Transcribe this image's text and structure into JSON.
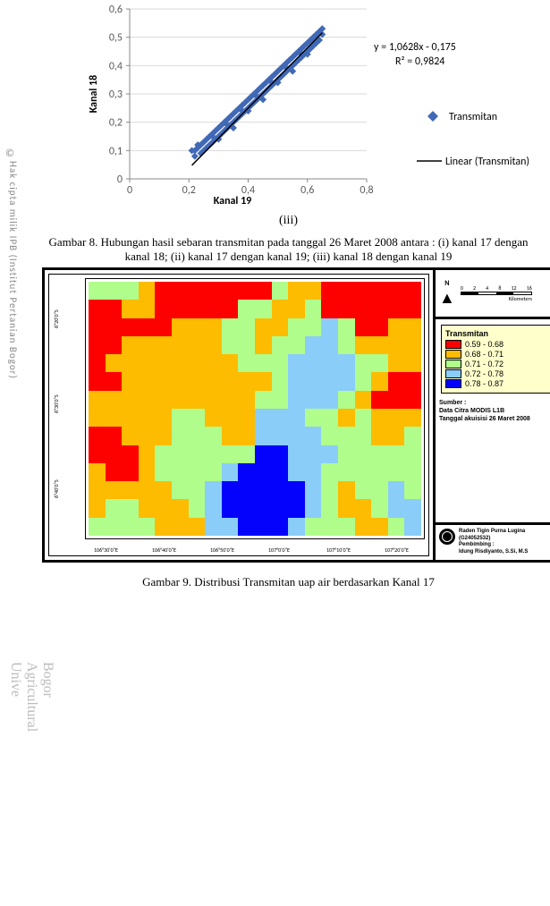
{
  "watermark": {
    "copyright_symbol": "©",
    "text_top": "Hak cipta milik IPB (Institut Pertanian Bogor)",
    "text_bottom": "Bogor Agricultural Unive"
  },
  "scatter_chart": {
    "type": "scatter",
    "x_axis": {
      "title": "Kanal 19",
      "min": 0,
      "max": 0.8,
      "step": 0.2,
      "ticks": [
        "0",
        "0,2",
        "0,4",
        "0,6",
        "0,8"
      ]
    },
    "y_axis": {
      "title": "Kanal 18",
      "min": 0,
      "max": 0.6,
      "step": 0.1,
      "ticks": [
        "0",
        "0,1",
        "0,2",
        "0,3",
        "0,4",
        "0,5",
        "0,6"
      ]
    },
    "equation": "y = 1,0628x - 0,175",
    "r_squared": "R² = 0,9824",
    "series_name": "Transmitan",
    "trend_name": "Linear (Transmitan)",
    "marker_color": "#4169b6",
    "marker_shape": "diamond",
    "trend_color": "#000000",
    "grid_color": "#d9d9d9",
    "axis_color": "#888888",
    "font": "Calibri",
    "label_fontsize": 12,
    "title_fontsize": 12,
    "data_cluster": {
      "comment": "dense linear cluster estimated from figure",
      "points": [
        [
          0.21,
          0.1
        ],
        [
          0.22,
          0.1
        ],
        [
          0.23,
          0.11
        ],
        [
          0.24,
          0.09
        ],
        [
          0.24,
          0.12
        ],
        [
          0.25,
          0.1
        ],
        [
          0.25,
          0.13
        ],
        [
          0.26,
          0.11
        ],
        [
          0.26,
          0.14
        ],
        [
          0.27,
          0.12
        ],
        [
          0.27,
          0.15
        ],
        [
          0.28,
          0.13
        ],
        [
          0.28,
          0.16
        ],
        [
          0.29,
          0.14
        ],
        [
          0.29,
          0.17
        ],
        [
          0.3,
          0.15
        ],
        [
          0.3,
          0.18
        ],
        [
          0.31,
          0.16
        ],
        [
          0.31,
          0.19
        ],
        [
          0.32,
          0.17
        ],
        [
          0.32,
          0.2
        ],
        [
          0.33,
          0.18
        ],
        [
          0.33,
          0.21
        ],
        [
          0.34,
          0.19
        ],
        [
          0.34,
          0.22
        ],
        [
          0.35,
          0.2
        ],
        [
          0.35,
          0.23
        ],
        [
          0.36,
          0.21
        ],
        [
          0.36,
          0.24
        ],
        [
          0.37,
          0.22
        ],
        [
          0.37,
          0.25
        ],
        [
          0.38,
          0.23
        ],
        [
          0.38,
          0.26
        ],
        [
          0.39,
          0.24
        ],
        [
          0.39,
          0.27
        ],
        [
          0.4,
          0.25
        ],
        [
          0.4,
          0.28
        ],
        [
          0.41,
          0.26
        ],
        [
          0.41,
          0.29
        ],
        [
          0.42,
          0.27
        ],
        [
          0.42,
          0.3
        ],
        [
          0.43,
          0.28
        ],
        [
          0.43,
          0.31
        ],
        [
          0.44,
          0.29
        ],
        [
          0.44,
          0.32
        ],
        [
          0.45,
          0.3
        ],
        [
          0.45,
          0.33
        ],
        [
          0.46,
          0.31
        ],
        [
          0.46,
          0.34
        ],
        [
          0.47,
          0.32
        ],
        [
          0.47,
          0.35
        ],
        [
          0.48,
          0.33
        ],
        [
          0.48,
          0.36
        ],
        [
          0.49,
          0.34
        ],
        [
          0.49,
          0.37
        ],
        [
          0.5,
          0.35
        ],
        [
          0.5,
          0.38
        ],
        [
          0.51,
          0.36
        ],
        [
          0.51,
          0.39
        ],
        [
          0.52,
          0.37
        ],
        [
          0.52,
          0.4
        ],
        [
          0.53,
          0.38
        ],
        [
          0.53,
          0.41
        ],
        [
          0.54,
          0.39
        ],
        [
          0.54,
          0.42
        ],
        [
          0.55,
          0.4
        ],
        [
          0.55,
          0.43
        ],
        [
          0.56,
          0.41
        ],
        [
          0.56,
          0.44
        ],
        [
          0.57,
          0.42
        ],
        [
          0.57,
          0.45
        ],
        [
          0.58,
          0.43
        ],
        [
          0.58,
          0.46
        ],
        [
          0.59,
          0.44
        ],
        [
          0.59,
          0.47
        ],
        [
          0.6,
          0.45
        ],
        [
          0.6,
          0.48
        ],
        [
          0.61,
          0.46
        ],
        [
          0.61,
          0.49
        ],
        [
          0.62,
          0.47
        ],
        [
          0.62,
          0.5
        ],
        [
          0.63,
          0.48
        ],
        [
          0.63,
          0.51
        ],
        [
          0.64,
          0.49
        ],
        [
          0.64,
          0.52
        ],
        [
          0.65,
          0.51
        ],
        [
          0.65,
          0.53
        ],
        [
          0.22,
          0.08
        ],
        [
          0.3,
          0.14
        ],
        [
          0.35,
          0.18
        ],
        [
          0.4,
          0.24
        ],
        [
          0.45,
          0.28
        ],
        [
          0.5,
          0.34
        ],
        [
          0.55,
          0.38
        ],
        [
          0.6,
          0.44
        ],
        [
          0.23,
          0.12
        ],
        [
          0.28,
          0.15
        ],
        [
          0.33,
          0.19
        ],
        [
          0.38,
          0.24
        ],
        [
          0.43,
          0.29
        ],
        [
          0.48,
          0.34
        ],
        [
          0.53,
          0.39
        ],
        [
          0.58,
          0.44
        ]
      ]
    },
    "trendline": {
      "x1": 0.21,
      "y1": 0.048,
      "x2": 0.65,
      "y2": 0.516
    }
  },
  "roman_numeral": "(iii)",
  "caption8": "Gambar 8. Hubungan hasil sebaran transmitan pada tanggal 26 Maret 2008 antara : (i) kanal 17 dengan kanal 18; (ii) kanal 17 dengan kanal 19; (iii) kanal 18 dengan kanal 19",
  "map": {
    "type": "heatmap",
    "north_label": "N",
    "scale_values": [
      "0",
      "2",
      "4",
      "8",
      "12",
      "16"
    ],
    "scale_unit": "Kilometers",
    "legend_title": "Transmitan",
    "legend": [
      {
        "range": "0.59 - 0.68",
        "color": "#fd0000"
      },
      {
        "range": "0.68 - 0.71",
        "color": "#fdbc00"
      },
      {
        "range": "0.71 - 0.72",
        "color": "#b0fd8b"
      },
      {
        "range": "0.72 - 0.78",
        "color": "#8acdf8"
      },
      {
        "range": "0.78 - 0.87",
        "color": "#0402fd"
      }
    ],
    "source": {
      "line1": "Sumber :",
      "line2": "Data Citra MODIS L1B",
      "line3": "Tanggal akuisisi 26 Maret 2008"
    },
    "author": {
      "line1": "Raden Tigin Purna Lugina",
      "line2": "(G24052532)",
      "line3": "Pembimbing :",
      "line4": "Idung Risdiyanto, S.Si, M.S"
    },
    "coords": {
      "x_ticks": [
        "106°30'0\"E",
        "106°40'0\"E",
        "106°50'0\"E",
        "107°0'0\"E",
        "107°10'0\"E",
        "107°20'0\"E"
      ],
      "y_ticks": [
        "6°20'0\"S",
        "6°30'0\"S",
        "6°40'0\"S"
      ]
    },
    "grid_colors_14x20": [
      [
        3,
        3,
        3,
        2,
        1,
        1,
        1,
        1,
        1,
        1,
        1,
        3,
        2,
        2,
        1,
        1,
        1,
        1,
        1,
        1
      ],
      [
        1,
        1,
        2,
        2,
        1,
        1,
        1,
        1,
        1,
        3,
        3,
        2,
        2,
        3,
        1,
        1,
        1,
        1,
        1,
        1
      ],
      [
        1,
        1,
        1,
        1,
        1,
        2,
        2,
        2,
        3,
        3,
        2,
        2,
        3,
        3,
        4,
        3,
        1,
        1,
        2,
        2
      ],
      [
        1,
        1,
        2,
        2,
        2,
        2,
        2,
        2,
        3,
        3,
        2,
        3,
        3,
        4,
        4,
        3,
        2,
        2,
        2,
        2
      ],
      [
        1,
        2,
        2,
        2,
        2,
        2,
        2,
        2,
        2,
        3,
        3,
        3,
        4,
        4,
        4,
        4,
        3,
        3,
        2,
        2
      ],
      [
        1,
        1,
        2,
        2,
        2,
        2,
        2,
        2,
        2,
        2,
        2,
        3,
        4,
        4,
        4,
        4,
        3,
        2,
        1,
        1
      ],
      [
        2,
        2,
        2,
        2,
        2,
        2,
        2,
        2,
        2,
        2,
        3,
        3,
        4,
        4,
        4,
        3,
        2,
        1,
        1,
        1
      ],
      [
        2,
        2,
        2,
        2,
        2,
        3,
        3,
        2,
        2,
        2,
        4,
        4,
        4,
        3,
        3,
        2,
        3,
        2,
        2,
        2
      ],
      [
        1,
        1,
        2,
        2,
        2,
        3,
        3,
        3,
        2,
        2,
        4,
        4,
        4,
        4,
        3,
        3,
        3,
        2,
        2,
        3
      ],
      [
        1,
        1,
        1,
        2,
        3,
        3,
        3,
        3,
        3,
        3,
        5,
        5,
        4,
        4,
        4,
        3,
        3,
        3,
        3,
        3
      ],
      [
        2,
        1,
        1,
        2,
        3,
        3,
        3,
        3,
        4,
        5,
        5,
        5,
        4,
        4,
        3,
        3,
        3,
        3,
        3,
        3
      ],
      [
        2,
        2,
        2,
        2,
        2,
        3,
        3,
        4,
        5,
        5,
        5,
        5,
        5,
        4,
        3,
        2,
        3,
        3,
        4,
        3
      ],
      [
        2,
        3,
        3,
        2,
        2,
        2,
        3,
        4,
        5,
        5,
        5,
        5,
        5,
        4,
        3,
        2,
        2,
        3,
        4,
        4
      ],
      [
        3,
        3,
        3,
        3,
        2,
        2,
        2,
        4,
        4,
        5,
        5,
        5,
        4,
        3,
        3,
        3,
        2,
        2,
        3,
        4
      ]
    ]
  },
  "caption9": "Gambar 9. Distribusi Transmitan uap air berdasarkan Kanal 17"
}
